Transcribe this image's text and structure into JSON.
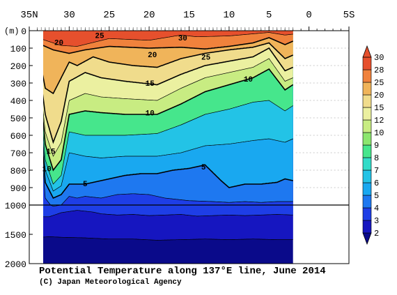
{
  "chart_data": {
    "type": "contour-section",
    "title": "Potential Temperature along 137°E line, June 2014",
    "credit": "(C) Japan Meteorological Agency",
    "y_unit": "(m)",
    "x_ticks": [
      {
        "lat": 35,
        "label": "35N"
      },
      {
        "lat": 30,
        "label": "30"
      },
      {
        "lat": 25,
        "label": "25"
      },
      {
        "lat": 20,
        "label": "20"
      },
      {
        "lat": 15,
        "label": "15"
      },
      {
        "lat": 10,
        "label": "10"
      },
      {
        "lat": 5,
        "label": "5"
      },
      {
        "lat": 0,
        "label": "0"
      },
      {
        "lat": -5,
        "label": "5S"
      }
    ],
    "xlim": [
      35,
      -5
    ],
    "y_ticks_upper": [
      {
        "depth": 0,
        "label": "0"
      },
      {
        "depth": 100,
        "label": "100"
      },
      {
        "depth": 200,
        "label": "200"
      },
      {
        "depth": 300,
        "label": "300"
      },
      {
        "depth": 400,
        "label": "400"
      },
      {
        "depth": 500,
        "label": "500"
      },
      {
        "depth": 600,
        "label": "600"
      },
      {
        "depth": 700,
        "label": "700"
      },
      {
        "depth": 800,
        "label": "800"
      },
      {
        "depth": 900,
        "label": "900"
      },
      {
        "depth": 1000,
        "label": "1000"
      }
    ],
    "y_ticks_lower": [
      {
        "depth": 1500,
        "label": "1500"
      },
      {
        "depth": 2000,
        "label": "2000"
      }
    ],
    "ylim": [
      0,
      2000
    ],
    "scale_break_depth": 1000,
    "data_lat_range": [
      34.0,
      2.0
    ],
    "colorbar": {
      "levels": [
        2,
        3,
        4,
        5,
        6,
        7,
        8,
        9,
        10,
        12,
        15,
        20,
        25,
        28,
        30
      ],
      "labels": [
        "2",
        "3",
        "4",
        "5",
        "6",
        "7",
        "8",
        "9",
        "10",
        "12",
        "15",
        "20",
        "25",
        "28",
        "30"
      ],
      "colors": [
        "#0a0a8a",
        "#1616c0",
        "#1e3ee6",
        "#1e78f0",
        "#19a8f0",
        "#23c3e6",
        "#32dcc8",
        "#46e68c",
        "#8ce66e",
        "#c8ec82",
        "#ebf0a0",
        "#f0dc8c",
        "#f0b45a",
        "#f0823c",
        "#e6502d"
      ]
    },
    "contour_labels": [
      {
        "text": "25",
        "lat": 26.2,
        "depth": 25
      },
      {
        "text": "30",
        "lat": 15.8,
        "depth": 40
      },
      {
        "text": "20",
        "lat": 31.3,
        "depth": 65
      },
      {
        "text": "20",
        "lat": 19.6,
        "depth": 135
      },
      {
        "text": "25",
        "lat": 12.9,
        "depth": 150
      },
      {
        "text": "10",
        "lat": 7.6,
        "depth": 275
      },
      {
        "text": "15",
        "lat": 19.9,
        "depth": 300
      },
      {
        "text": "10",
        "lat": 19.9,
        "depth": 470
      },
      {
        "text": "15",
        "lat": 32.3,
        "depth": 690
      },
      {
        "text": "10",
        "lat": 32.8,
        "depth": 790
      },
      {
        "text": "5",
        "lat": 13.2,
        "depth": 780
      },
      {
        "text": "5",
        "lat": 28.0,
        "depth": 875
      }
    ],
    "isotherms": [
      {
        "level": 28,
        "points": [
          [
            34,
            40
          ],
          [
            31,
            85
          ],
          [
            29,
            90
          ],
          [
            25,
            45
          ],
          [
            20,
            55
          ],
          [
            16,
            25
          ],
          [
            14,
            35
          ],
          [
            10,
            30
          ],
          [
            5,
            10
          ],
          [
            3,
            25
          ],
          [
            2,
            20
          ]
        ]
      },
      {
        "level": 25,
        "points": [
          [
            34,
            70
          ],
          [
            32,
            110
          ],
          [
            30,
            130
          ],
          [
            28,
            110
          ],
          [
            25,
            90
          ],
          [
            20,
            100
          ],
          [
            16,
            95
          ],
          [
            13,
            105
          ],
          [
            10,
            90
          ],
          [
            7,
            70
          ],
          [
            5,
            40
          ],
          [
            3,
            80
          ],
          [
            2,
            60
          ]
        ]
      },
      {
        "level": 20,
        "points": [
          [
            34,
            90
          ],
          [
            33,
            330
          ],
          [
            32,
            360
          ],
          [
            30,
            180
          ],
          [
            29,
            200
          ],
          [
            27,
            150
          ],
          [
            25,
            180
          ],
          [
            22,
            200
          ],
          [
            19,
            210
          ],
          [
            16,
            160
          ],
          [
            13,
            130
          ],
          [
            10,
            110
          ],
          [
            7,
            95
          ],
          [
            5,
            70
          ],
          [
            3,
            160
          ],
          [
            2,
            140
          ]
        ]
      },
      {
        "level": 15,
        "points": [
          [
            34,
            120
          ],
          [
            33,
            480
          ],
          [
            32,
            640
          ],
          [
            31,
            520
          ],
          [
            30,
            290
          ],
          [
            28,
            240
          ],
          [
            26,
            270
          ],
          [
            23,
            290
          ],
          [
            19,
            310
          ],
          [
            16,
            250
          ],
          [
            13,
            200
          ],
          [
            10,
            175
          ],
          [
            7,
            150
          ],
          [
            5,
            100
          ],
          [
            3,
            230
          ],
          [
            2,
            210
          ]
        ]
      },
      {
        "level": 12,
        "points": [
          [
            34,
            150
          ],
          [
            33,
            580
          ],
          [
            32,
            720
          ],
          [
            31,
            640
          ],
          [
            30,
            400
          ],
          [
            28,
            360
          ],
          [
            26,
            380
          ],
          [
            23,
            390
          ],
          [
            19,
            400
          ],
          [
            16,
            330
          ],
          [
            13,
            270
          ],
          [
            10,
            240
          ],
          [
            7,
            210
          ],
          [
            5,
            160
          ],
          [
            3,
            290
          ],
          [
            2,
            270
          ]
        ]
      },
      {
        "level": 10,
        "points": [
          [
            34,
            170
          ],
          [
            33,
            650
          ],
          [
            32,
            800
          ],
          [
            31,
            740
          ],
          [
            30,
            480
          ],
          [
            28,
            460
          ],
          [
            26,
            470
          ],
          [
            23,
            480
          ],
          [
            19,
            480
          ],
          [
            16,
            420
          ],
          [
            13,
            350
          ],
          [
            10,
            310
          ],
          [
            7,
            270
          ],
          [
            5,
            220
          ],
          [
            3,
            340
          ],
          [
            2,
            310
          ]
        ]
      },
      {
        "level": 8,
        "points": [
          [
            34,
            200
          ],
          [
            33,
            740
          ],
          [
            32,
            880
          ],
          [
            31,
            830
          ],
          [
            30,
            580
          ],
          [
            28,
            600
          ],
          [
            26,
            600
          ],
          [
            23,
            600
          ],
          [
            19,
            590
          ],
          [
            16,
            540
          ],
          [
            13,
            480
          ],
          [
            10,
            450
          ],
          [
            7,
            410
          ],
          [
            5,
            400
          ],
          [
            3,
            460
          ],
          [
            2,
            430
          ]
        ]
      },
      {
        "level": 6,
        "points": [
          [
            34,
            240
          ],
          [
            33,
            800
          ],
          [
            32,
            920
          ],
          [
            31,
            890
          ],
          [
            30,
            700
          ],
          [
            28,
            720
          ],
          [
            26,
            730
          ],
          [
            23,
            720
          ],
          [
            19,
            720
          ],
          [
            16,
            700
          ],
          [
            13,
            660
          ],
          [
            10,
            650
          ],
          [
            7,
            630
          ],
          [
            5,
            620
          ],
          [
            3,
            640
          ],
          [
            2,
            620
          ]
        ]
      },
      {
        "level": 5,
        "points": [
          [
            34,
            280
          ],
          [
            33,
            870
          ],
          [
            32,
            960
          ],
          [
            31,
            940
          ],
          [
            30,
            880
          ],
          [
            28,
            880
          ],
          [
            26,
            860
          ],
          [
            23,
            830
          ],
          [
            21,
            820
          ],
          [
            19,
            820
          ],
          [
            17,
            800
          ],
          [
            15,
            790
          ],
          [
            13,
            770
          ],
          [
            11,
            860
          ],
          [
            10,
            900
          ],
          [
            8,
            880
          ],
          [
            6,
            880
          ],
          [
            4,
            870
          ],
          [
            3,
            850
          ],
          [
            2,
            860
          ]
        ]
      },
      {
        "level": 4,
        "points": [
          [
            34,
            350
          ],
          [
            33,
            960
          ],
          [
            32,
            1020
          ],
          [
            31,
            1000
          ],
          [
            30,
            950
          ],
          [
            29,
            960
          ],
          [
            28,
            950
          ],
          [
            27,
            955
          ],
          [
            26,
            960
          ],
          [
            24,
            940
          ],
          [
            22,
            935
          ],
          [
            20,
            940
          ],
          [
            18,
            960
          ],
          [
            15,
            975
          ],
          [
            12,
            980
          ],
          [
            10,
            985
          ],
          [
            8,
            980
          ],
          [
            6,
            985
          ],
          [
            4,
            980
          ],
          [
            2,
            980
          ]
        ]
      },
      {
        "level": 3,
        "points": [
          [
            34,
            500
          ],
          [
            33.5,
            1200
          ],
          [
            32.5,
            1200
          ],
          [
            31,
            1130
          ],
          [
            29,
            1090
          ],
          [
            27,
            1120
          ],
          [
            26,
            1150
          ],
          [
            24,
            1170
          ],
          [
            22,
            1160
          ],
          [
            20,
            1180
          ],
          [
            18,
            1170
          ],
          [
            16,
            1160
          ],
          [
            14,
            1190
          ],
          [
            12,
            1180
          ],
          [
            10,
            1170
          ],
          [
            8,
            1180
          ],
          [
            6,
            1170
          ],
          [
            4,
            1160
          ],
          [
            2,
            1170
          ]
        ]
      },
      {
        "level": 2,
        "points": [
          [
            34,
            900
          ],
          [
            33.5,
            1550
          ],
          [
            32.5,
            1540
          ],
          [
            31,
            1550
          ],
          [
            28,
            1560
          ],
          [
            25,
            1580
          ],
          [
            22,
            1580
          ],
          [
            19,
            1600
          ],
          [
            16,
            1590
          ],
          [
            13,
            1580
          ],
          [
            10,
            1590
          ],
          [
            7,
            1580
          ],
          [
            4,
            1590
          ],
          [
            2,
            1590
          ]
        ]
      }
    ]
  }
}
